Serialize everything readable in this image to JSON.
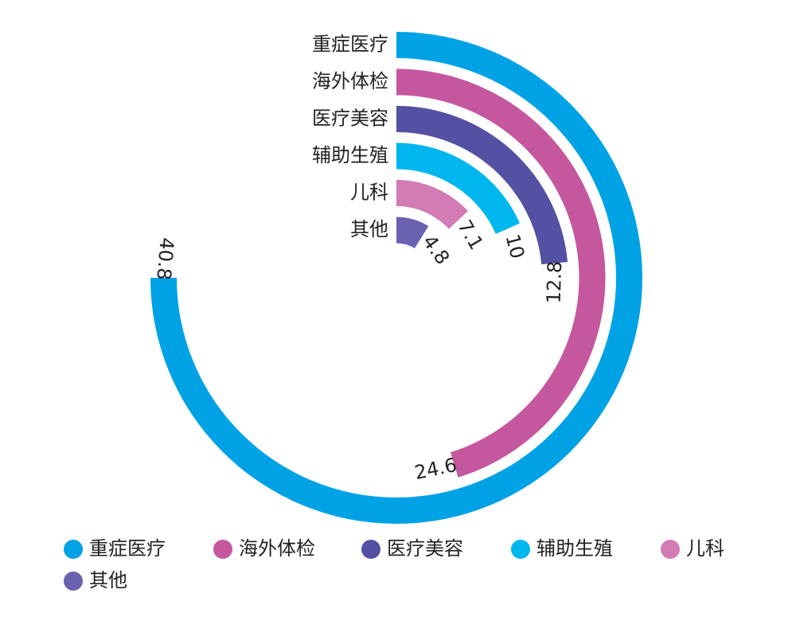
{
  "chart_data": {
    "type": "radial-bar",
    "categories": [
      "重症医疗",
      "海外体检",
      "医疗美容",
      "辅助生殖",
      "儿科",
      "其他"
    ],
    "values": [
      40.8,
      24.6,
      12.8,
      10,
      7.1,
      4.8
    ],
    "colors": [
      "#00a2e6",
      "#c5579e",
      "#5450a3",
      "#00b6ee",
      "#d27bb4",
      "#6a62b0"
    ],
    "xlim": [
      0,
      54.4
    ]
  }
}
